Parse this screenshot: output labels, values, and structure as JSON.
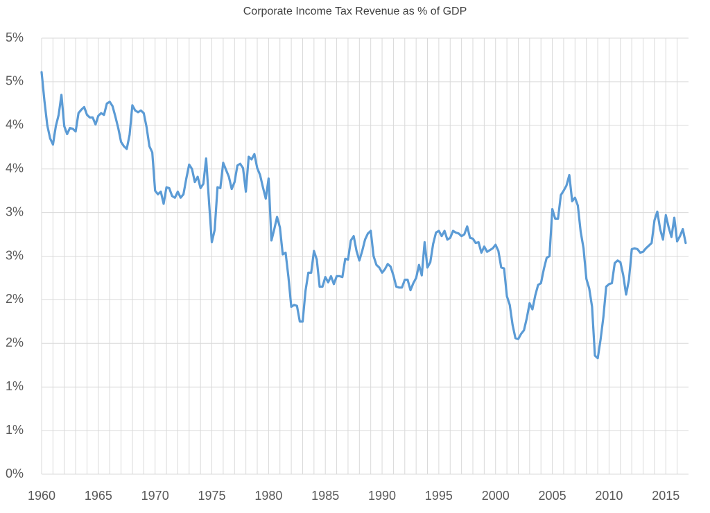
{
  "chart_data": {
    "type": "line",
    "title": "Corporate Income Tax Revenue as % of GDP",
    "x": [
      1960,
      1960.25,
      1960.5,
      1960.75,
      1961,
      1961.25,
      1961.5,
      1961.75,
      1962,
      1962.25,
      1962.5,
      1962.75,
      1963,
      1963.25,
      1963.5,
      1963.75,
      1964,
      1964.25,
      1964.5,
      1964.75,
      1965,
      1965.25,
      1965.5,
      1965.75,
      1966,
      1966.25,
      1966.5,
      1966.75,
      1967,
      1967.25,
      1967.5,
      1967.75,
      1968,
      1968.25,
      1968.5,
      1968.75,
      1969,
      1969.25,
      1969.5,
      1969.75,
      1970,
      1970.25,
      1970.5,
      1970.75,
      1971,
      1971.25,
      1971.5,
      1971.75,
      1972,
      1972.25,
      1972.5,
      1972.75,
      1973,
      1973.25,
      1973.5,
      1973.75,
      1974,
      1974.25,
      1974.5,
      1974.75,
      1975,
      1975.25,
      1975.5,
      1975.75,
      1976,
      1976.25,
      1976.5,
      1976.75,
      1977,
      1977.25,
      1977.5,
      1977.75,
      1978,
      1978.25,
      1978.5,
      1978.75,
      1979,
      1979.25,
      1979.5,
      1979.75,
      1980,
      1980.25,
      1980.5,
      1980.75,
      1981,
      1981.25,
      1981.5,
      1981.75,
      1982,
      1982.25,
      1982.5,
      1982.75,
      1983,
      1983.25,
      1983.5,
      1983.75,
      1984,
      1984.25,
      1984.5,
      1984.75,
      1985,
      1985.25,
      1985.5,
      1985.75,
      1986,
      1986.25,
      1986.5,
      1986.75,
      1987,
      1987.25,
      1987.5,
      1987.75,
      1988,
      1988.25,
      1988.5,
      1988.75,
      1989,
      1989.25,
      1989.5,
      1989.75,
      1990,
      1990.25,
      1990.5,
      1990.75,
      1991,
      1991.25,
      1991.5,
      1991.75,
      1992,
      1992.25,
      1992.5,
      1992.75,
      1993,
      1993.25,
      1993.5,
      1993.75,
      1994,
      1994.25,
      1994.5,
      1994.75,
      1995,
      1995.25,
      1995.5,
      1995.75,
      1996,
      1996.25,
      1996.5,
      1996.75,
      1997,
      1997.25,
      1997.5,
      1997.75,
      1998,
      1998.25,
      1998.5,
      1998.75,
      1999,
      1999.25,
      1999.5,
      1999.75,
      2000,
      2000.25,
      2000.5,
      2000.75,
      2001,
      2001.25,
      2001.5,
      2001.75,
      2002,
      2002.25,
      2002.5,
      2002.75,
      2003,
      2003.25,
      2003.5,
      2003.75,
      2004,
      2004.25,
      2004.5,
      2004.75,
      2005,
      2005.25,
      2005.5,
      2005.75,
      2006,
      2006.25,
      2006.5,
      2006.75,
      2007,
      2007.25,
      2007.5,
      2007.75,
      2008,
      2008.25,
      2008.5,
      2008.75,
      2009,
      2009.25,
      2009.5,
      2009.75,
      2010,
      2010.25,
      2010.5,
      2010.75,
      2011,
      2011.25,
      2011.5,
      2011.75,
      2012,
      2012.25,
      2012.5,
      2012.75,
      2013,
      2013.25,
      2013.5,
      2013.75,
      2014,
      2014.25,
      2014.5,
      2014.75,
      2015,
      2015.25,
      2015.5,
      2015.75,
      2016,
      2016.25,
      2016.5,
      2016.75
    ],
    "series": [
      {
        "name": "Corporate Income Tax Revenue",
        "color": "#5b9bd5",
        "values": [
          4.61,
          4.28,
          4.0,
          3.85,
          3.78,
          3.99,
          4.12,
          4.35,
          3.99,
          3.9,
          3.97,
          3.96,
          3.93,
          4.14,
          4.18,
          4.21,
          4.12,
          4.09,
          4.09,
          4.01,
          4.11,
          4.14,
          4.12,
          4.25,
          4.27,
          4.22,
          4.1,
          3.97,
          3.81,
          3.76,
          3.73,
          3.89,
          4.23,
          4.17,
          4.15,
          4.17,
          4.14,
          3.98,
          3.76,
          3.69,
          3.25,
          3.21,
          3.24,
          3.1,
          3.29,
          3.28,
          3.19,
          3.17,
          3.24,
          3.17,
          3.21,
          3.39,
          3.55,
          3.5,
          3.35,
          3.41,
          3.28,
          3.33,
          3.62,
          3.13,
          2.66,
          2.8,
          3.29,
          3.28,
          3.57,
          3.49,
          3.41,
          3.27,
          3.35,
          3.54,
          3.56,
          3.51,
          3.24,
          3.64,
          3.61,
          3.67,
          3.51,
          3.43,
          3.29,
          3.16,
          3.39,
          2.68,
          2.81,
          2.95,
          2.83,
          2.52,
          2.54,
          2.26,
          1.92,
          1.94,
          1.93,
          1.75,
          1.75,
          2.1,
          2.31,
          2.31,
          2.56,
          2.46,
          2.15,
          2.15,
          2.26,
          2.2,
          2.27,
          2.18,
          2.27,
          2.27,
          2.26,
          2.47,
          2.46,
          2.68,
          2.73,
          2.56,
          2.45,
          2.56,
          2.69,
          2.76,
          2.79,
          2.5,
          2.4,
          2.37,
          2.31,
          2.35,
          2.41,
          2.38,
          2.28,
          2.15,
          2.14,
          2.14,
          2.23,
          2.23,
          2.11,
          2.19,
          2.25,
          2.4,
          2.28,
          2.66,
          2.37,
          2.43,
          2.64,
          2.77,
          2.79,
          2.73,
          2.79,
          2.69,
          2.71,
          2.79,
          2.77,
          2.76,
          2.73,
          2.75,
          2.84,
          2.71,
          2.7,
          2.65,
          2.66,
          2.54,
          2.61,
          2.55,
          2.57,
          2.59,
          2.63,
          2.56,
          2.37,
          2.36,
          2.04,
          1.94,
          1.71,
          1.56,
          1.55,
          1.61,
          1.65,
          1.79,
          1.96,
          1.89,
          2.05,
          2.17,
          2.19,
          2.35,
          2.48,
          2.5,
          3.04,
          2.93,
          2.93,
          3.2,
          3.25,
          3.31,
          3.43,
          3.13,
          3.17,
          3.08,
          2.78,
          2.59,
          2.24,
          2.13,
          1.92,
          1.36,
          1.33,
          1.54,
          1.8,
          2.15,
          2.18,
          2.19,
          2.42,
          2.45,
          2.43,
          2.28,
          2.06,
          2.23,
          2.58,
          2.59,
          2.58,
          2.54,
          2.55,
          2.59,
          2.62,
          2.65,
          2.91,
          3.01,
          2.81,
          2.69,
          2.97,
          2.83,
          2.72,
          2.94,
          2.67,
          2.73,
          2.81,
          2.65
        ]
      }
    ],
    "xlim": [
      1960,
      2017
    ],
    "xticks": [
      1960,
      1965,
      1970,
      1975,
      1980,
      1985,
      1990,
      1995,
      2000,
      2005,
      2010,
      2015
    ],
    "x_grid_ticks": [
      1960,
      1961,
      1962,
      1963,
      1964,
      1965,
      1966,
      1967,
      1968,
      1969,
      1970,
      1971,
      1972,
      1973,
      1974,
      1975,
      1976,
      1977,
      1978,
      1979,
      1980,
      1981,
      1982,
      1983,
      1984,
      1985,
      1986,
      1987,
      1988,
      1989,
      1990,
      1991,
      1992,
      1993,
      1994,
      1995,
      1996,
      1997,
      1998,
      1999,
      2000,
      2001,
      2002,
      2003,
      2004,
      2005,
      2006,
      2007,
      2008,
      2009,
      2010,
      2011,
      2012,
      2013,
      2014,
      2015,
      2016
    ],
    "ylim": [
      0,
      5
    ],
    "yticks": [
      {
        "value": 0,
        "label": "0%"
      },
      {
        "value": 0.5,
        "label": "1%"
      },
      {
        "value": 1,
        "label": "1%"
      },
      {
        "value": 1.5,
        "label": "2%"
      },
      {
        "value": 2,
        "label": "2%"
      },
      {
        "value": 2.5,
        "label": "3%"
      },
      {
        "value": 3,
        "label": "3%"
      },
      {
        "value": 3.5,
        "label": "4%"
      },
      {
        "value": 4,
        "label": "4%"
      },
      {
        "value": 4.5,
        "label": "5%"
      },
      {
        "value": 5,
        "label": "5%"
      }
    ],
    "grid": true
  }
}
